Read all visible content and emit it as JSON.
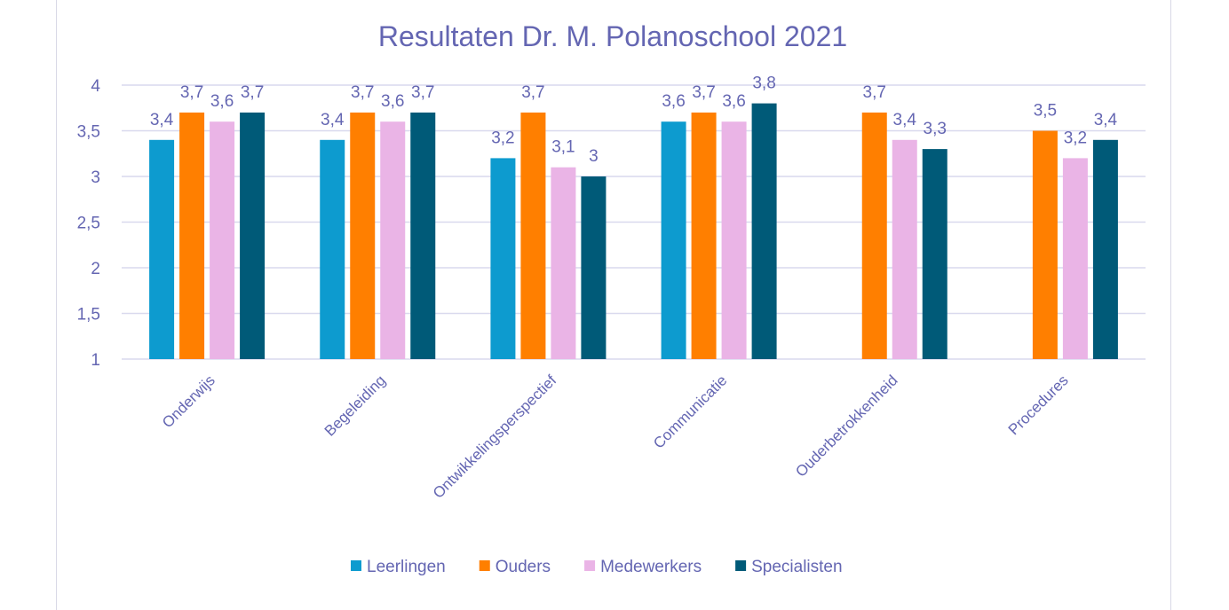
{
  "chart_data": {
    "type": "bar",
    "title": "Resultaten Dr. M. Polanoschool 2021",
    "categories": [
      "Onderwijs",
      "Begeleiding",
      "Ontwikkelingsperspectief",
      "Communicatie",
      "Ouderbetrokkenheid",
      "Procedures"
    ],
    "series": [
      {
        "name": "Leerlingen",
        "color": "#0d9bcf",
        "values": [
          3.4,
          3.4,
          3.2,
          3.6,
          null,
          null
        ],
        "labels": [
          "3,4",
          "3,4",
          "3,2",
          "3,6",
          "",
          ""
        ]
      },
      {
        "name": "Ouders",
        "color": "#ff7f00",
        "values": [
          3.7,
          3.7,
          3.7,
          3.7,
          3.7,
          3.5
        ],
        "labels": [
          "3,7",
          "3,7",
          "3,7",
          "3,7",
          "3,7",
          "3,5"
        ]
      },
      {
        "name": "Medewerkers",
        "color": "#eab4e6",
        "values": [
          3.6,
          3.6,
          3.1,
          3.6,
          3.4,
          3.2
        ],
        "labels": [
          "3,6",
          "3,6",
          "3,1",
          "3,6",
          "3,4",
          "3,2"
        ]
      },
      {
        "name": "Specialisten",
        "color": "#005a78",
        "values": [
          3.7,
          3.7,
          3.0,
          3.8,
          3.3,
          3.4
        ],
        "labels": [
          "3,7",
          "3,7",
          "3",
          "3,8",
          "3,3",
          "3,4"
        ]
      }
    ],
    "ylim": [
      1,
      4
    ],
    "yticks": [
      1,
      1.5,
      2,
      2.5,
      3,
      3.5,
      4
    ],
    "ytick_labels": [
      "1",
      "1,5",
      "2",
      "2,5",
      "3",
      "3,5",
      "4"
    ],
    "grid": true,
    "legend": "bottom",
    "text_color": "#6466b2",
    "grid_color": "#d9d9ee"
  }
}
